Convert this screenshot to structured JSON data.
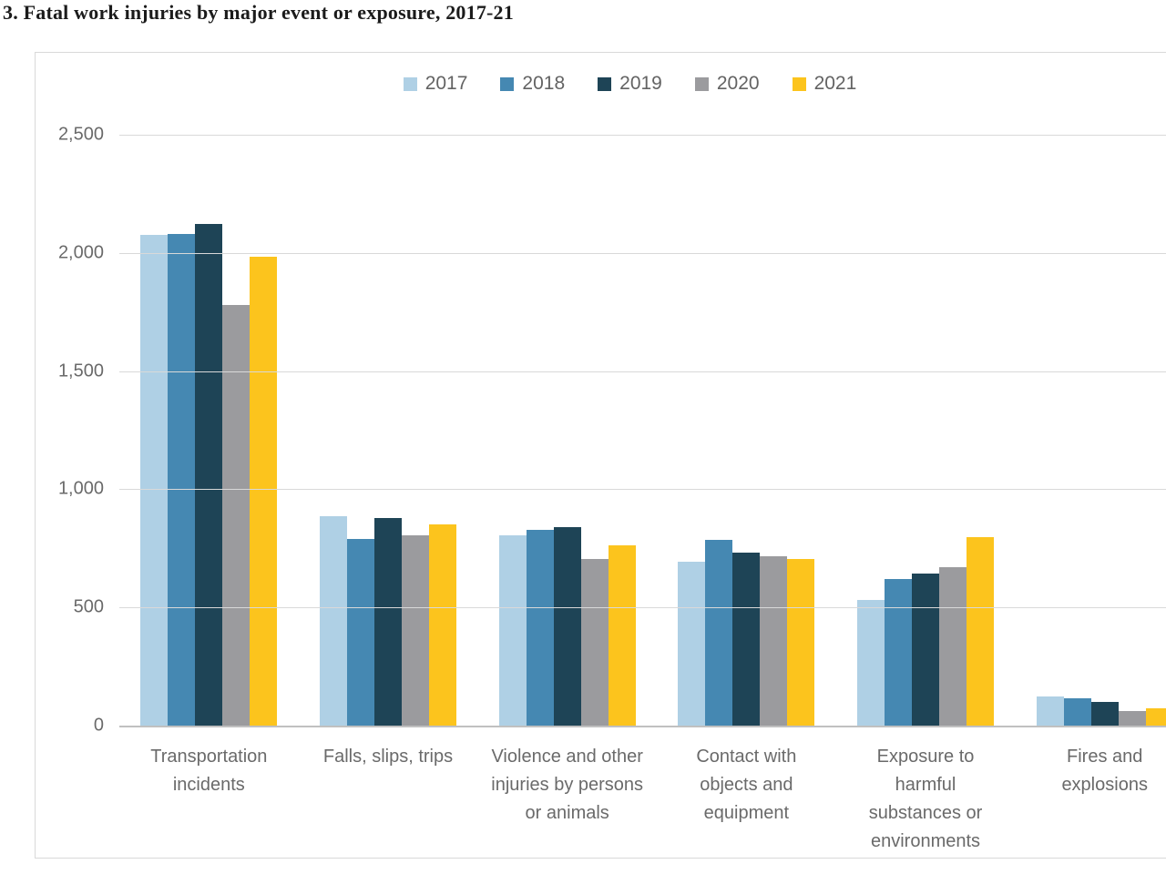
{
  "title": "3. Fatal work injuries by major event or exposure, 2017-21",
  "chart_data": {
    "type": "bar",
    "title": "3. Fatal work injuries by major event or exposure, 2017-21",
    "categories": [
      "Transportation incidents",
      "Falls, slips, trips",
      "Violence and other injuries by persons or animals",
      "Contact with objects and equipment",
      "Exposure to harmful substances or environments",
      "Fires and explosions"
    ],
    "category_label_lines": [
      [
        "Transportation",
        "incidents"
      ],
      [
        "Falls, slips, trips"
      ],
      [
        "Violence and other",
        "injuries by persons",
        "or animals"
      ],
      [
        "Contact with",
        "objects and",
        "equipment"
      ],
      [
        "Exposure to",
        "harmful",
        "substances or",
        "environments"
      ],
      [
        "Fires and",
        "explosions"
      ]
    ],
    "series": [
      {
        "name": "2017",
        "color": "#afd0e5",
        "values": [
          2077,
          887,
          807,
          695,
          531,
          123
        ]
      },
      {
        "name": "2018",
        "color": "#4588b2",
        "values": [
          2080,
          791,
          828,
          786,
          621,
          115
        ]
      },
      {
        "name": "2019",
        "color": "#1e4456",
        "values": [
          2122,
          880,
          841,
          732,
          642,
          99
        ]
      },
      {
        "name": "2020",
        "color": "#9b9b9e",
        "values": [
          1778,
          805,
          705,
          716,
          672,
          63
        ]
      },
      {
        "name": "2021",
        "color": "#fcc41d",
        "values": [
          1982,
          850,
          761,
          705,
          798,
          72
        ]
      }
    ],
    "ylim": [
      0,
      2500
    ],
    "yticks": [
      {
        "value": 2500,
        "label": "2,500"
      },
      {
        "value": 2000,
        "label": "2,000"
      },
      {
        "value": 1500,
        "label": "1,500"
      },
      {
        "value": 1000,
        "label": "1,000"
      },
      {
        "value": 500,
        "label": "500"
      },
      {
        "value": 0,
        "label": "0"
      }
    ],
    "grid": true,
    "legend_position": "top",
    "colors": {
      "gridline": "#d9d9d9",
      "baseline": "#c0c0c0",
      "axis_text": "#6a6a6a",
      "legend_text": "#636363",
      "border": "#d9d9d9"
    }
  }
}
